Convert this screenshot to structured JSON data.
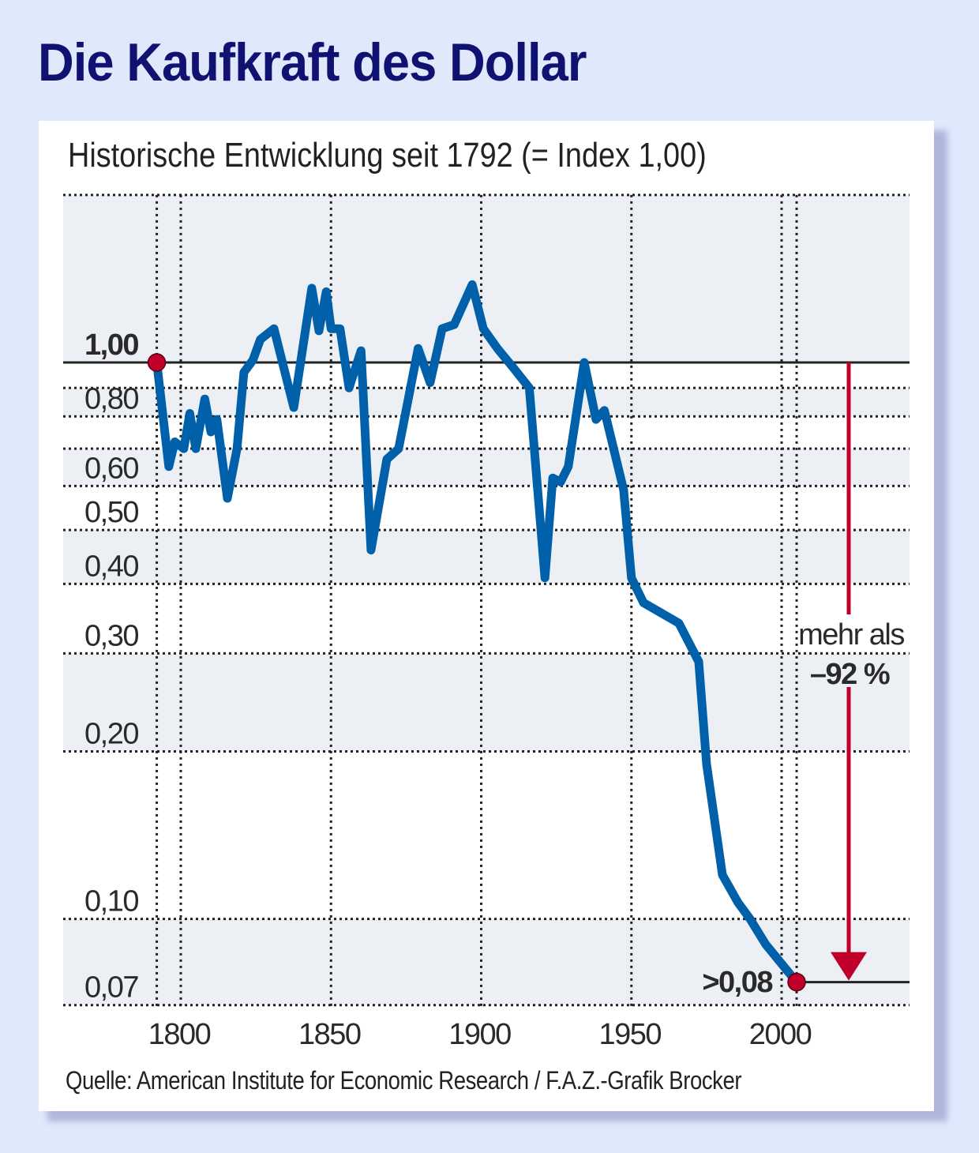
{
  "title": "Die Kaufkraft des Dollar",
  "colors": {
    "background": "#e0e8fc",
    "title": "#0f1270",
    "line": "#0060aa",
    "marker": "#c0002a",
    "band": "#eceff4"
  },
  "chart_data": {
    "type": "line",
    "title": "Die Kaufkraft des Dollar",
    "subtitle": "Historische Entwicklung seit 1792 (= Index 1,00)",
    "xlabel": "",
    "ylabel": "",
    "y_scale": "log",
    "xlim": [
      1792,
      2030
    ],
    "ylim": [
      0.07,
      2.0
    ],
    "x_ticks": [
      {
        "value": 1800,
        "label": "1800"
      },
      {
        "value": 1850,
        "label": "1850"
      },
      {
        "value": 1900,
        "label": "1900"
      },
      {
        "value": 1950,
        "label": "1950"
      },
      {
        "value": 2000,
        "label": "2000"
      }
    ],
    "y_ticks": [
      {
        "value": 1.0,
        "label": "1,00"
      },
      {
        "value": 0.8,
        "label": "0,80"
      },
      {
        "value": 0.6,
        "label": "0,60"
      },
      {
        "value": 0.5,
        "label": "0,50"
      },
      {
        "value": 0.4,
        "label": "0,40"
      },
      {
        "value": 0.3,
        "label": "0,30"
      },
      {
        "value": 0.2,
        "label": "0,20"
      },
      {
        "value": 0.1,
        "label": "0,10"
      },
      {
        "value": 0.07,
        "label": "0,07"
      }
    ],
    "grid": true,
    "series": [
      {
        "name": "Kaufkraft des Dollar",
        "x": [
          1792,
          1796,
          1798,
          1801,
          1803,
          1805,
          1808,
          1810,
          1812,
          1815.5,
          1818.7,
          1821,
          1824,
          1826.5,
          1831,
          1837.6,
          1843.6,
          1846,
          1848.4,
          1850,
          1853,
          1856,
          1860,
          1863.3,
          1868.6,
          1872.5,
          1879,
          1883,
          1887,
          1891,
          1897,
          1900.7,
          1905.4,
          1910.6,
          1916,
          1921.2,
          1923.8,
          1926.4,
          1929,
          1934.3,
          1938.2,
          1941,
          1947.4,
          1950,
          1954,
          1965.8,
          1972.4,
          1975,
          1980.3,
          1985.5,
          1989.5,
          1994.7,
          2005
        ],
        "y": [
          1.0,
          0.65,
          0.72,
          0.7,
          0.81,
          0.7,
          0.86,
          0.75,
          0.79,
          0.57,
          0.7,
          0.96,
          1.01,
          1.1,
          1.15,
          0.83,
          1.36,
          1.14,
          1.34,
          1.15,
          1.15,
          0.9,
          1.05,
          0.46,
          0.67,
          0.7,
          1.06,
          0.92,
          1.15,
          1.17,
          1.38,
          1.15,
          1.06,
          0.98,
          0.9,
          0.41,
          0.62,
          0.61,
          0.65,
          1.0,
          0.79,
          0.82,
          0.59,
          0.41,
          0.37,
          0.34,
          0.29,
          0.19,
          0.12,
          0.107,
          0.1,
          0.09,
          0.077
        ]
      }
    ],
    "annotations": {
      "start_label": "1,00",
      "end_label": ">0,08",
      "change_line1": "mehr als",
      "change_line2": "–92 %"
    }
  },
  "source": "Quelle: American Institute for Economic Research / F.A.Z.-Grafik Brocker"
}
